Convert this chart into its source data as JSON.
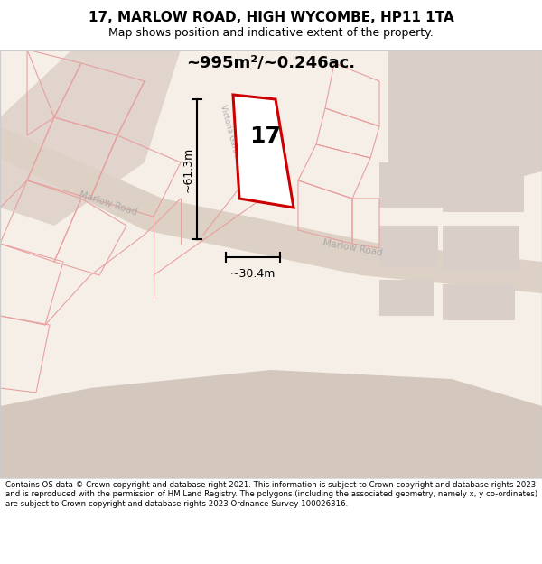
{
  "title_line1": "17, MARLOW ROAD, HIGH WYCOMBE, HP11 1TA",
  "title_line2": "Map shows position and indicative extent of the property.",
  "area_text": "~995m²/~0.246ac.",
  "property_number": "17",
  "dim_height": "~61.3m",
  "dim_width": "~30.4m",
  "footer_text": "Contains OS data © Crown copyright and database right 2021. This information is subject to Crown copyright and database rights 2023 and is reproduced with the permission of HM Land Registry. The polygons (including the associated geometry, namely x, y co-ordinates) are subject to Crown copyright and database rights 2023 Ordnance Survey 100026316.",
  "bg_color": "#f5efe8",
  "map_bg": "#f5efe8",
  "road_color": "#e8d5c8",
  "building_color": "#d9cfc8",
  "property_fill": "#ffffff",
  "property_edge": "#cc0000",
  "pink_line_color": "#e8a0a0",
  "footer_bg": "#ffffff",
  "title_bg": "#ffffff"
}
